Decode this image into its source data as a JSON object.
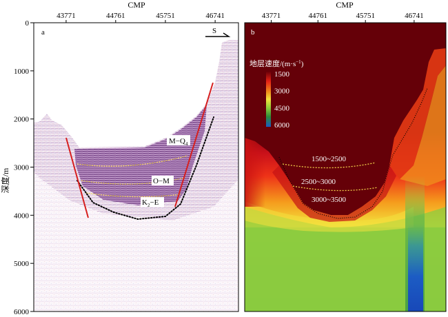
{
  "figure": {
    "top_axis_label": "CMP",
    "y_axis_label": "深度/m",
    "cmp_ticks": [
      "43771",
      "44761",
      "45751",
      "46741"
    ],
    "depth_ticks": [
      "0",
      "1000",
      "2000",
      "3000",
      "4000",
      "5000",
      "6000"
    ],
    "depth_range": [
      0,
      6000
    ]
  },
  "panel_a": {
    "label": "a",
    "direction_label": "S",
    "horizon_labels": [
      {
        "text": "M−Q",
        "sub": "4"
      },
      {
        "text": "O−M",
        "sub": ""
      },
      {
        "text": "K",
        "sub": "2",
        "tail": "−E"
      }
    ],
    "colors": {
      "seismic_purple": "#7b3a8a",
      "fault_red": "#d61f1f",
      "horizon_yellow": "#f2d14a",
      "basement_dotted": "#000000"
    }
  },
  "panel_b": {
    "label": "b",
    "legend": {
      "title": "地层速度/(m·s",
      "title_sup": "−1",
      "title_tail": ")",
      "ticks": [
        "1500",
        "3000",
        "4500",
        "6000"
      ],
      "colors": [
        "#6b0008",
        "#e82316",
        "#f08a1a",
        "#f2e23c",
        "#8ccc3a",
        "#2c8a3a",
        "#1b5bc4"
      ]
    },
    "interval_labels": [
      "1500~2500",
      "2500~3000",
      "3000~3500"
    ]
  }
}
